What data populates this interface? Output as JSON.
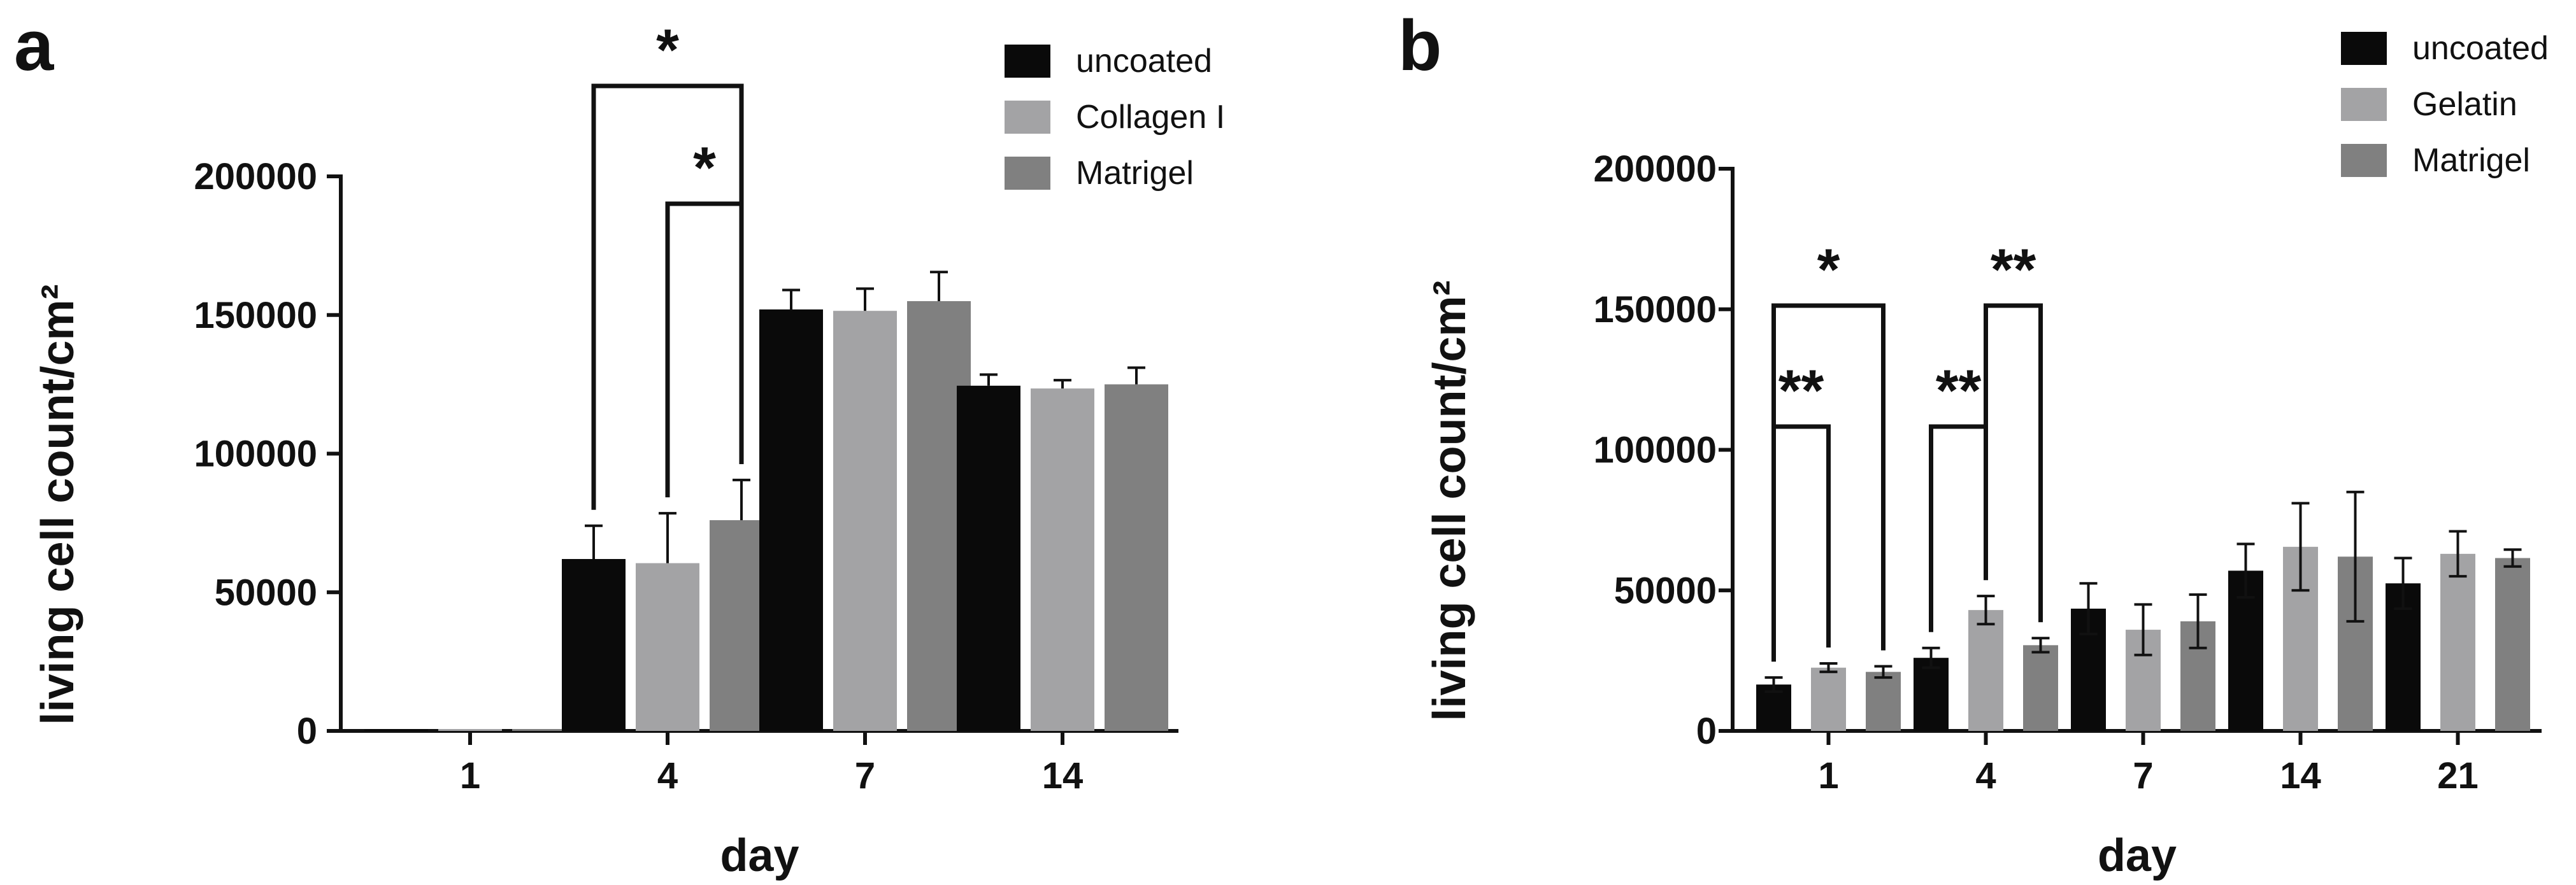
{
  "figure": {
    "type": "multi-panel bar chart"
  },
  "chart_data": [
    {
      "panel": "a",
      "type": "bar",
      "xlabel": "day",
      "ylabel": "living cell count/cm²",
      "ylim": [
        0,
        200000
      ],
      "yticks": [
        0,
        50000,
        100000,
        150000,
        200000
      ],
      "categories": [
        "1",
        "4",
        "7",
        "14"
      ],
      "legend_position": "top-right",
      "series": [
        {
          "name": "uncoated",
          "color": "#0a0a0a",
          "values": [
            0,
            62000,
            152000,
            124500
          ],
          "errors": [
            0,
            12000,
            7000,
            4000
          ]
        },
        {
          "name": "Collagen I",
          "color": "#a3a3a5",
          "values": [
            0,
            60500,
            151500,
            123500
          ],
          "errors": [
            0,
            18000,
            8000,
            3000
          ]
        },
        {
          "name": "Matrigel",
          "color": "#808080",
          "values": [
            0,
            76000,
            155000,
            125000
          ],
          "errors": [
            0,
            14500,
            10500,
            6000
          ]
        }
      ],
      "significance": [
        {
          "label": "*",
          "category": "4",
          "from_series": 0,
          "to_series": 2,
          "level": 2
        },
        {
          "label": "*",
          "category": "4",
          "from_series": 1,
          "to_series": 2,
          "level": 1
        }
      ]
    },
    {
      "panel": "b",
      "type": "bar",
      "xlabel": "day",
      "ylabel": "living cell count/cm²",
      "ylim": [
        0,
        200000
      ],
      "yticks": [
        0,
        50000,
        100000,
        150000,
        200000
      ],
      "categories": [
        "1",
        "4",
        "7",
        "14",
        "21"
      ],
      "legend_position": "top-right",
      "series": [
        {
          "name": "uncoated",
          "color": "#0a0a0a",
          "values": [
            16500,
            26000,
            43500,
            57000,
            52500
          ],
          "errors": [
            2500,
            3500,
            9000,
            9500,
            9000
          ]
        },
        {
          "name": "Gelatin",
          "color": "#a3a3a5",
          "values": [
            22500,
            43000,
            36000,
            65500,
            63000
          ],
          "errors": [
            1500,
            5000,
            9000,
            15500,
            8000
          ]
        },
        {
          "name": "Matrigel",
          "color": "#808080",
          "values": [
            21000,
            30500,
            39000,
            62000,
            61500
          ],
          "errors": [
            2000,
            2500,
            9500,
            23000,
            3000
          ]
        }
      ],
      "significance": [
        {
          "label": "**",
          "category": "1",
          "from_series": 0,
          "to_series": 1,
          "level": 1
        },
        {
          "label": "*",
          "category": "1",
          "from_series": 0,
          "to_series": 2,
          "level": 2
        },
        {
          "label": "**",
          "category": "4",
          "from_series": 0,
          "to_series": 1,
          "level": 1
        },
        {
          "label": "**",
          "category": "4",
          "from_series": 1,
          "to_series": 2,
          "level": 2
        }
      ]
    }
  ]
}
